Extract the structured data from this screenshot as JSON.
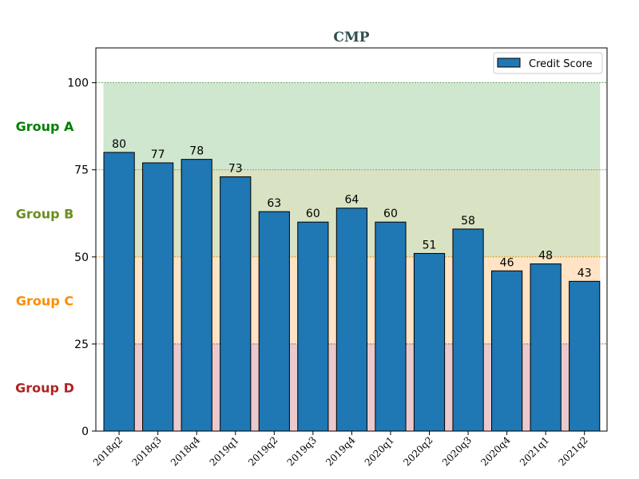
{
  "chart_data": {
    "type": "bar",
    "title": "CMP",
    "categories": [
      "2018q2",
      "2018q3",
      "2018q4",
      "2019q1",
      "2019q2",
      "2019q3",
      "2019q4",
      "2020q1",
      "2020q2",
      "2020q3",
      "2020q4",
      "2021q1",
      "2021q2"
    ],
    "series": [
      {
        "name": "Credit Score",
        "values": [
          80,
          77,
          78,
          73,
          63,
          60,
          64,
          60,
          51,
          58,
          46,
          48,
          43
        ],
        "color": "#1f77b4"
      }
    ],
    "ylim": [
      0,
      110
    ],
    "yticks": [
      0,
      25,
      50,
      75,
      100
    ],
    "xlabel": "",
    "ylabel": "",
    "legend": {
      "position": "top-right"
    },
    "bands": [
      {
        "label": "Group A",
        "from": 75,
        "to": 100,
        "fill": "#cfe6cf",
        "line": "#2e8b2e",
        "text_color": "#008000"
      },
      {
        "label": "Group B",
        "from": 50,
        "to": 75,
        "fill": "#d9e2c2",
        "line": "#8a8a1a",
        "text_color": "#6b8e23"
      },
      {
        "label": "Group C",
        "from": 25,
        "to": 50,
        "fill": "#ffe3c4",
        "line": "#e08a00",
        "text_color": "#ff8c00"
      },
      {
        "label": "Group D",
        "from": 0,
        "to": 25,
        "fill": "#ebc9cc",
        "line": "#b22222",
        "text_color": "#b22222"
      }
    ],
    "title_color": "#2f4f4f"
  }
}
